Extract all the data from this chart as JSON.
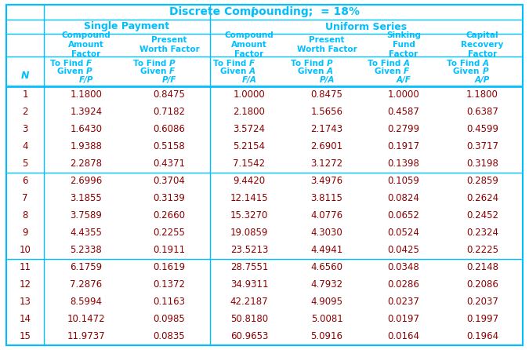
{
  "title": "Discrete Compounding; ι = 18%",
  "title_display": "Discrete Compounding; i = 18%",
  "N": [
    1,
    2,
    3,
    4,
    5,
    6,
    7,
    8,
    9,
    10,
    11,
    12,
    13,
    14,
    15
  ],
  "FP": [
    1.18,
    1.3924,
    1.643,
    1.9388,
    2.2878,
    2.6996,
    3.1855,
    3.7589,
    4.4355,
    5.2338,
    6.1759,
    7.2876,
    8.5994,
    10.1472,
    11.9737
  ],
  "PF": [
    0.8475,
    0.7182,
    0.6086,
    0.5158,
    0.4371,
    0.3704,
    0.3139,
    0.266,
    0.2255,
    0.1911,
    0.1619,
    0.1372,
    0.1163,
    0.0985,
    0.0835
  ],
  "FA": [
    1.0,
    2.18,
    3.5724,
    5.2154,
    7.1542,
    9.442,
    12.1415,
    15.327,
    19.0859,
    23.5213,
    28.7551,
    34.9311,
    42.2187,
    50.818,
    60.9653
  ],
  "PA": [
    0.8475,
    1.5656,
    2.1743,
    2.6901,
    3.1272,
    3.4976,
    3.8115,
    4.0776,
    4.303,
    4.4941,
    4.656,
    4.7932,
    4.9095,
    5.0081,
    5.0916
  ],
  "AF": [
    1.0,
    0.4587,
    0.2799,
    0.1917,
    0.1398,
    0.1059,
    0.0824,
    0.0652,
    0.0524,
    0.0425,
    0.0348,
    0.0286,
    0.0237,
    0.0197,
    0.0164
  ],
  "AP": [
    1.18,
    0.6387,
    0.4599,
    0.3717,
    0.3198,
    0.2859,
    0.2624,
    0.2452,
    0.2324,
    0.2225,
    0.2148,
    0.2086,
    0.2037,
    0.1997,
    0.1964
  ],
  "cyan": "#00BFFF",
  "data_color": "#8B0000",
  "bg_color": "#FFFFFF",
  "border_lw": 1.5,
  "thick_lw": 2.0,
  "thin_lw": 1.0
}
